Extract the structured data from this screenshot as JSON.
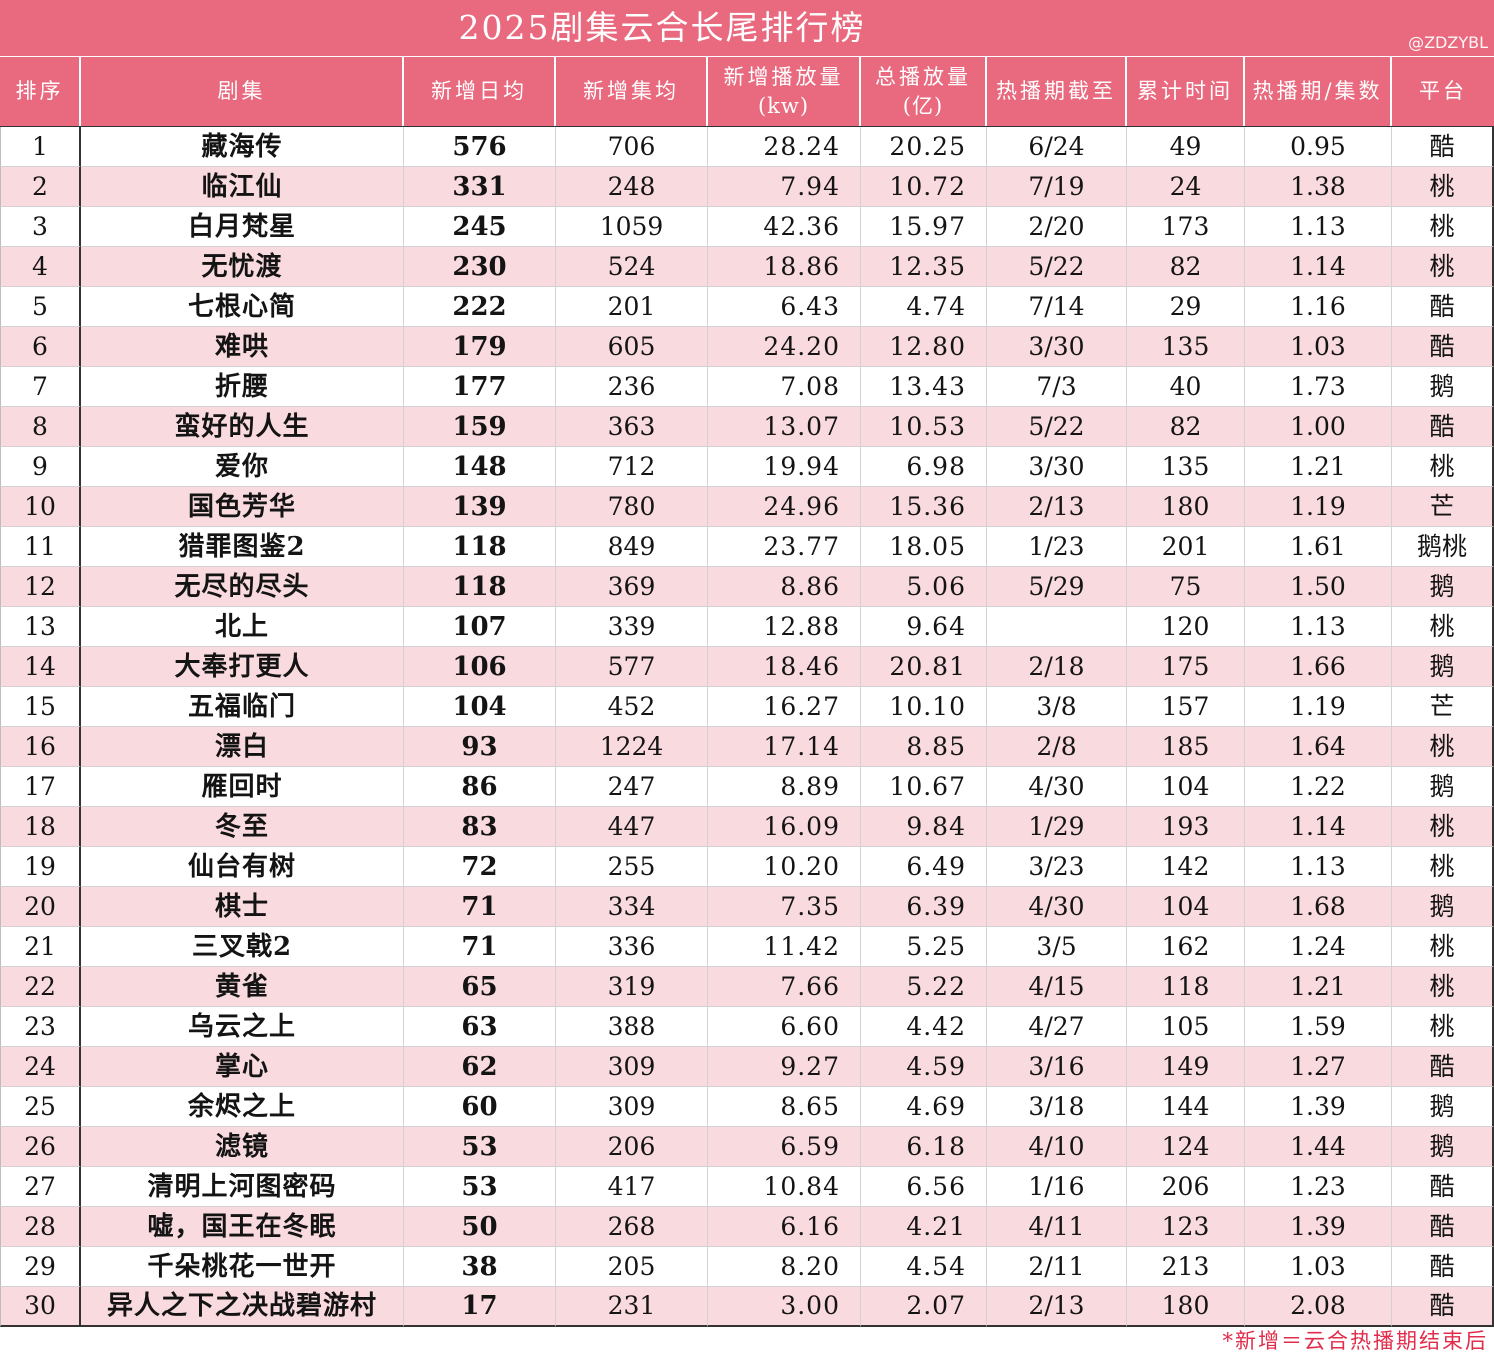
{
  "chart_data": {
    "type": "table",
    "title": "2025剧集云合长尾排行榜",
    "columns": [
      {
        "label": "排序"
      },
      {
        "label": "剧集"
      },
      {
        "label": "新增日均"
      },
      {
        "label": "新增集均"
      },
      {
        "label": "新增播放量",
        "unit": "(kw)"
      },
      {
        "label": "总播放量",
        "unit": "(亿)"
      },
      {
        "label": "热播期截至"
      },
      {
        "label": "累计时间"
      },
      {
        "label": "热播期/集数"
      },
      {
        "label": "平台"
      }
    ],
    "rows": [
      [
        "1",
        "藏海传",
        "576",
        "706",
        "28.24",
        "20.25",
        "6/24",
        "49",
        "0.95",
        "酷"
      ],
      [
        "2",
        "临江仙",
        "331",
        "248",
        "7.94",
        "10.72",
        "7/19",
        "24",
        "1.38",
        "桃"
      ],
      [
        "3",
        "白月梵星",
        "245",
        "1059",
        "42.36",
        "15.97",
        "2/20",
        "173",
        "1.13",
        "桃"
      ],
      [
        "4",
        "无忧渡",
        "230",
        "524",
        "18.86",
        "12.35",
        "5/22",
        "82",
        "1.14",
        "桃"
      ],
      [
        "5",
        "七根心简",
        "222",
        "201",
        "6.43",
        "4.74",
        "7/14",
        "29",
        "1.16",
        "酷"
      ],
      [
        "6",
        "难哄",
        "179",
        "605",
        "24.20",
        "12.80",
        "3/30",
        "135",
        "1.03",
        "酷"
      ],
      [
        "7",
        "折腰",
        "177",
        "236",
        "7.08",
        "13.43",
        "7/3",
        "40",
        "1.73",
        "鹅"
      ],
      [
        "8",
        "蛮好的人生",
        "159",
        "363",
        "13.07",
        "10.53",
        "5/22",
        "82",
        "1.00",
        "酷"
      ],
      [
        "9",
        "爱你",
        "148",
        "712",
        "19.94",
        "6.98",
        "3/30",
        "135",
        "1.21",
        "桃"
      ],
      [
        "10",
        "国色芳华",
        "139",
        "780",
        "24.96",
        "15.36",
        "2/13",
        "180",
        "1.19",
        "芒"
      ],
      [
        "11",
        "猎罪图鉴2",
        "118",
        "849",
        "23.77",
        "18.05",
        "1/23",
        "201",
        "1.61",
        "鹅桃"
      ],
      [
        "12",
        "无尽的尽头",
        "118",
        "369",
        "8.86",
        "5.06",
        "5/29",
        "75",
        "1.50",
        "鹅"
      ],
      [
        "13",
        "北上",
        "107",
        "339",
        "12.88",
        "9.64",
        "",
        "120",
        "1.13",
        "桃"
      ],
      [
        "14",
        "大奉打更人",
        "106",
        "577",
        "18.46",
        "20.81",
        "2/18",
        "175",
        "1.66",
        "鹅"
      ],
      [
        "15",
        "五福临门",
        "104",
        "452",
        "16.27",
        "10.10",
        "3/8",
        "157",
        "1.19",
        "芒"
      ],
      [
        "16",
        "漂白",
        "93",
        "1224",
        "17.14",
        "8.85",
        "2/8",
        "185",
        "1.64",
        "桃"
      ],
      [
        "17",
        "雁回时",
        "86",
        "247",
        "8.89",
        "10.67",
        "4/30",
        "104",
        "1.22",
        "鹅"
      ],
      [
        "18",
        "冬至",
        "83",
        "447",
        "16.09",
        "9.84",
        "1/29",
        "193",
        "1.14",
        "桃"
      ],
      [
        "19",
        "仙台有树",
        "72",
        "255",
        "10.20",
        "6.49",
        "3/23",
        "142",
        "1.13",
        "桃"
      ],
      [
        "20",
        "棋士",
        "71",
        "334",
        "7.35",
        "6.39",
        "4/30",
        "104",
        "1.68",
        "鹅"
      ],
      [
        "21",
        "三叉戟2",
        "71",
        "336",
        "11.42",
        "5.25",
        "3/5",
        "162",
        "1.24",
        "桃"
      ],
      [
        "22",
        "黄雀",
        "65",
        "319",
        "7.66",
        "5.22",
        "4/15",
        "118",
        "1.21",
        "桃"
      ],
      [
        "23",
        "乌云之上",
        "63",
        "388",
        "6.60",
        "4.42",
        "4/27",
        "105",
        "1.59",
        "桃"
      ],
      [
        "24",
        "掌心",
        "62",
        "309",
        "9.27",
        "4.59",
        "3/16",
        "149",
        "1.27",
        "酷"
      ],
      [
        "25",
        "余烬之上",
        "60",
        "309",
        "8.65",
        "4.69",
        "3/18",
        "144",
        "1.39",
        "鹅"
      ],
      [
        "26",
        "滤镜",
        "53",
        "206",
        "6.59",
        "6.18",
        "4/10",
        "124",
        "1.44",
        "鹅"
      ],
      [
        "27",
        "清明上河图密码",
        "53",
        "417",
        "10.84",
        "6.56",
        "1/16",
        "206",
        "1.23",
        "酷"
      ],
      [
        "28",
        "嘘，国王在冬眠",
        "50",
        "268",
        "6.16",
        "4.21",
        "4/11",
        "123",
        "1.39",
        "酷"
      ],
      [
        "29",
        "千朵桃花一世开",
        "38",
        "205",
        "8.20",
        "4.54",
        "2/11",
        "213",
        "1.03",
        "酷"
      ],
      [
        "30",
        "异人之下之决战碧游村",
        "17",
        "231",
        "3.00",
        "2.07",
        "2/13",
        "180",
        "2.08",
        "酷"
      ]
    ]
  },
  "watermark": "@ZDZYBL",
  "footnote": "*新增＝云合热播期结束后",
  "colors": {
    "header": "#E9697E",
    "stripe": "#F9DADF",
    "footnote": "#E12D4B"
  }
}
